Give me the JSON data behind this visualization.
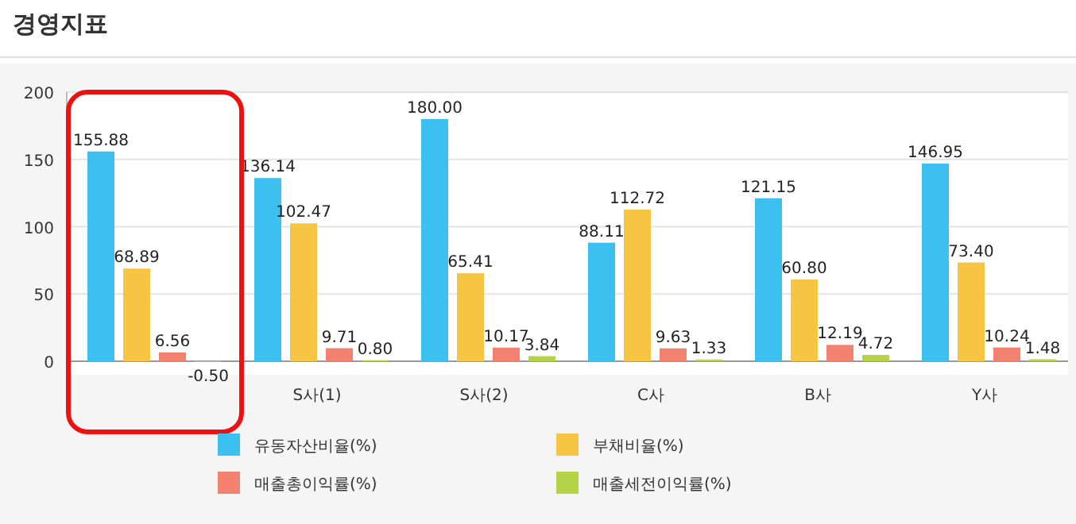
{
  "chart_data": {
    "type": "bar",
    "title": "경영지표",
    "categories": [
      null,
      "S사(1)",
      "S사(2)",
      "C사",
      "B사",
      "Y사"
    ],
    "series": [
      {
        "name": "유동자산비율(%)",
        "color": "#3cc0ef",
        "values": [
          155.88,
          136.14,
          180.0,
          88.11,
          121.15,
          146.95
        ],
        "value_labels": [
          "155.88",
          "136.14",
          "180.00",
          "88.11",
          "121.15",
          "146.95"
        ]
      },
      {
        "name": "부채비율(%)",
        "color": "#f6c544",
        "values": [
          68.89,
          102.47,
          65.41,
          112.72,
          60.8,
          73.4
        ],
        "value_labels": [
          "68.89",
          "102.47",
          "65.41",
          "112.72",
          "60.80",
          "73.40"
        ]
      },
      {
        "name": "매출총이익률(%)",
        "color": "#f2816f",
        "values": [
          6.56,
          9.71,
          10.17,
          9.63,
          12.19,
          10.24
        ],
        "value_labels": [
          "6.56",
          "9.71",
          "10.17",
          "9.63",
          "12.19",
          "10.24"
        ]
      },
      {
        "name": "매출세전이익률(%)",
        "color": "#b6d246",
        "values": [
          -0.5,
          0.8,
          3.84,
          1.33,
          4.72,
          1.48
        ],
        "value_labels": [
          "-0.50",
          "0.80",
          "3.84",
          "1.33",
          "4.72",
          "1.48"
        ]
      }
    ],
    "ylim": [
      -10,
      200
    ],
    "yticks": [
      0,
      50,
      100,
      150,
      200
    ],
    "grid": "y",
    "legend": "bottom"
  }
}
